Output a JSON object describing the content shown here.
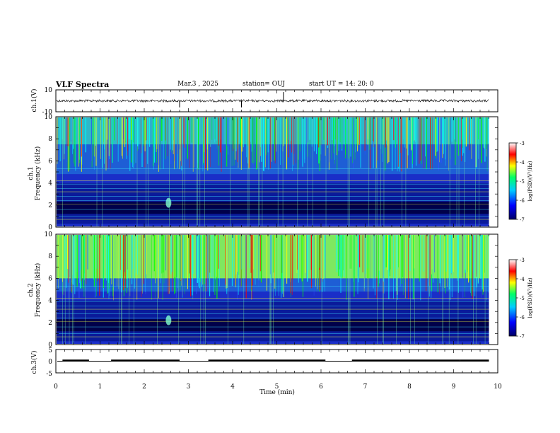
{
  "header": {
    "title": "VLF Spectra",
    "date": "Mar.3 , 2025",
    "station": "station= OUJ",
    "start": "start UT = 14: 20: 0"
  },
  "colors": {
    "c1": "#000088",
    "c2": "#0000ff",
    "c3": "#00ffff",
    "c4": "#00ff00",
    "c5": "#ffff00",
    "c6": "#ff0000",
    "c7": "#ffffff",
    "bg": "#1a2ec8"
  },
  "chart_data": [
    {
      "type": "line",
      "name": "ch1-waveform",
      "ylabel": "ch.1(V)",
      "ylim": [
        -10,
        10
      ],
      "ytick_labels": [
        "10",
        "-10"
      ],
      "xlim": [
        0,
        10
      ],
      "level": 0,
      "spikes": [
        {
          "x": 2.8,
          "y": -6
        },
        {
          "x": 4.2,
          "y": -6
        },
        {
          "x": 5.15,
          "y": 8
        }
      ]
    },
    {
      "type": "heatmap",
      "name": "ch1-spectrogram",
      "ylabel": "ch.1 Frequency (kHz)",
      "ylim": [
        0,
        10
      ],
      "ytick_labels": [
        "10",
        "8",
        "6",
        "4",
        "2",
        "0"
      ],
      "xlim": [
        0,
        9.8
      ],
      "high_power_above_khz": 7.5,
      "colorbar": {
        "label": "log(PSD)(V²/Hz)",
        "range": [
          -7,
          -3
        ],
        "tick_labels": [
          "-3",
          "-4",
          "-5",
          "-6",
          "-7"
        ]
      }
    },
    {
      "type": "heatmap",
      "name": "ch2-spectrogram",
      "ylabel": "ch.2 Frequency (kHz)",
      "ylim": [
        0,
        10
      ],
      "ytick_labels": [
        "10",
        "8",
        "6",
        "4",
        "2",
        "0"
      ],
      "xlim": [
        0,
        9.8
      ],
      "high_power_above_khz": 6.0,
      "colorbar": {
        "label": "log(PSD)(V²/Hz)",
        "range": [
          -7,
          -3
        ],
        "tick_labels": [
          "-3",
          "-4",
          "-5",
          "-6",
          "-7"
        ]
      }
    },
    {
      "type": "line",
      "name": "ch3-signal",
      "ylabel": "ch.3(V)",
      "ylim": [
        -5,
        5
      ],
      "ytick_labels": [
        "5",
        "0",
        "-5"
      ],
      "xlim": [
        0,
        10
      ],
      "xlabel": "Time (min)",
      "xtick_labels": [
        "0",
        "1",
        "2",
        "3",
        "4",
        "5",
        "6",
        "7",
        "8",
        "9",
        "10"
      ],
      "level": 0,
      "segments": [
        [
          0.15,
          0.75
        ],
        [
          1.25,
          2.8
        ],
        [
          3.45,
          6.1
        ],
        [
          6.7,
          9.15
        ],
        [
          9.15,
          9.8
        ]
      ]
    }
  ]
}
